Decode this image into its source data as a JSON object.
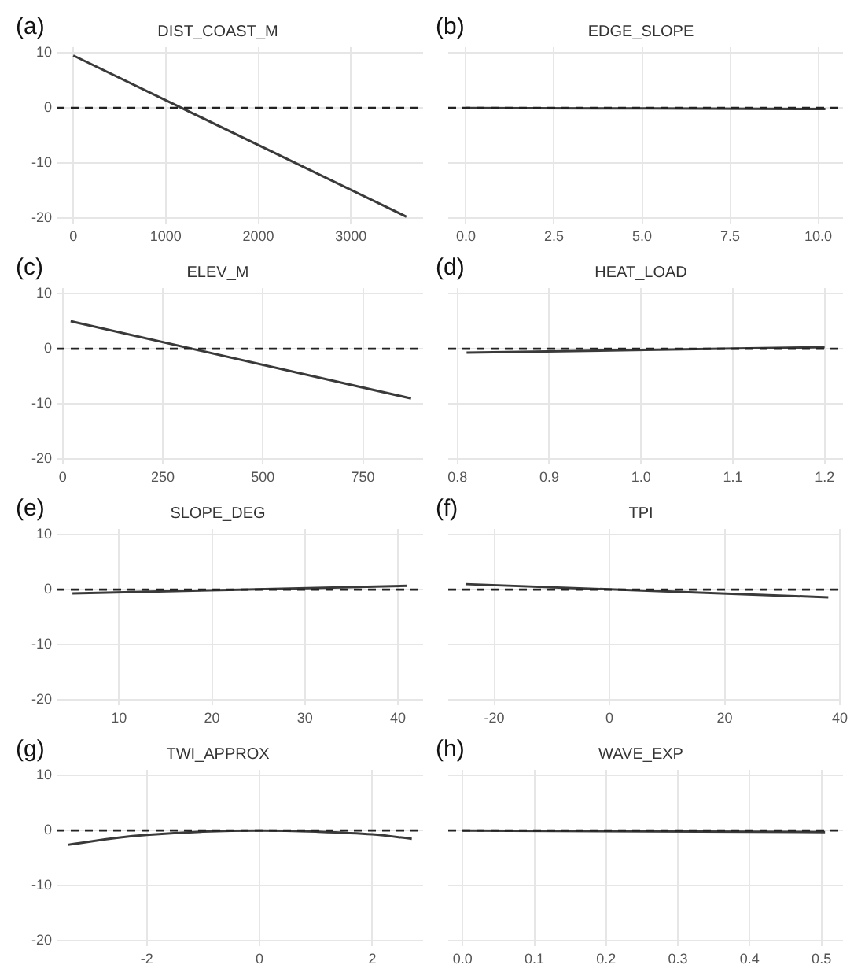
{
  "chart_data": [
    {
      "type": "line",
      "title": "DIST_COAST_M",
      "annotations": [
        "(a)"
      ],
      "x": [
        0,
        3600
      ],
      "series": [
        {
          "color": "#3a3a3a",
          "values": [
            9.5,
            -19.7
          ]
        }
      ],
      "xlim": [
        -180,
        3780
      ],
      "xticks": [
        0,
        1000,
        2000,
        3000
      ],
      "ylim": [
        -21,
        11
      ],
      "yticks": [
        -20,
        -10,
        0,
        10
      ],
      "grid": true,
      "marker": "none",
      "ref_lines": [
        {
          "axis": "y",
          "value": 0,
          "color": "#222222",
          "line_style": "dashed"
        }
      ]
    },
    {
      "type": "line",
      "title": "EDGE_SLOPE",
      "annotations": [
        "(b)"
      ],
      "x": [
        0,
        10.2
      ],
      "series": [
        {
          "color": "#3a3a3a",
          "values": [
            0,
            -0.2
          ]
        }
      ],
      "xlim": [
        -0.5,
        10.7
      ],
      "xticks": [
        {
          "value": 0,
          "label": "0.0"
        },
        2.5,
        {
          "value": 5,
          "label": "5.0"
        },
        7.5,
        {
          "value": 10,
          "label": "10.0"
        }
      ],
      "ylim": [
        -21,
        11
      ],
      "yticks": [
        -20,
        -10,
        0,
        10
      ],
      "tick_labels": "x",
      "grid": true,
      "marker": "none",
      "ref_lines": [
        {
          "axis": "y",
          "value": 0,
          "color": "#222222",
          "line_style": "dashed"
        }
      ]
    },
    {
      "type": "line",
      "title": "ELEV_M",
      "annotations": [
        "(c)"
      ],
      "x": [
        20,
        870
      ],
      "series": [
        {
          "color": "#3a3a3a",
          "values": [
            5,
            -9
          ]
        }
      ],
      "xlim": [
        -15,
        900
      ],
      "xticks": [
        0,
        250,
        500,
        750
      ],
      "ylim": [
        -21,
        11
      ],
      "yticks": [
        -20,
        -10,
        0,
        10
      ],
      "grid": true,
      "marker": "none",
      "ref_lines": [
        {
          "axis": "y",
          "value": 0,
          "color": "#222222",
          "line_style": "dashed"
        }
      ]
    },
    {
      "type": "line",
      "title": "HEAT_LOAD",
      "annotations": [
        "(d)"
      ],
      "x": [
        0.81,
        1.2
      ],
      "series": [
        {
          "color": "#3a3a3a",
          "values": [
            -0.7,
            0.3
          ]
        }
      ],
      "xlim": [
        0.79,
        1.22
      ],
      "xticks": [
        0.8,
        0.9,
        {
          "value": 1,
          "label": "1.0"
        },
        1.1,
        1.2
      ],
      "ylim": [
        -21,
        11
      ],
      "yticks": [
        -20,
        -10,
        0,
        10
      ],
      "tick_labels": "x",
      "grid": true,
      "marker": "none",
      "ref_lines": [
        {
          "axis": "y",
          "value": 0,
          "color": "#222222",
          "line_style": "dashed"
        }
      ]
    },
    {
      "type": "line",
      "title": "SLOPE_DEG",
      "annotations": [
        "(e)"
      ],
      "x": [
        5,
        41
      ],
      "series": [
        {
          "color": "#3a3a3a",
          "values": [
            -0.7,
            0.7
          ]
        }
      ],
      "xlim": [
        3.3,
        42.7
      ],
      "xticks": [
        10,
        20,
        30,
        40
      ],
      "ylim": [
        -21,
        11
      ],
      "yticks": [
        -20,
        -10,
        0,
        10
      ],
      "grid": true,
      "marker": "none",
      "ref_lines": [
        {
          "axis": "y",
          "value": 0,
          "color": "#222222",
          "line_style": "dashed"
        }
      ]
    },
    {
      "type": "line",
      "title": "TPI",
      "annotations": [
        "(f)"
      ],
      "x": [
        -25,
        38
      ],
      "series": [
        {
          "color": "#3a3a3a",
          "values": [
            1,
            -1.4
          ]
        }
      ],
      "xlim": [
        -28,
        40
      ],
      "xticks": [
        -20,
        0,
        20,
        40
      ],
      "ylim": [
        -21,
        11
      ],
      "yticks": [
        -20,
        -10,
        0,
        10
      ],
      "tick_labels": "x",
      "grid": true,
      "marker": "none",
      "ref_lines": [
        {
          "axis": "y",
          "value": 0,
          "color": "#222222",
          "line_style": "dashed"
        }
      ]
    },
    {
      "type": "line",
      "title": "TWI_APPROX",
      "annotations": [
        "(g)"
      ],
      "x": [
        -3.4,
        -2.5,
        -2,
        -1,
        0,
        1,
        2,
        2.7
      ],
      "series": [
        {
          "color": "#3a3a3a",
          "values": [
            -2.6,
            -1.3,
            -0.8,
            -0.2,
            0,
            -0.2,
            -0.7,
            -1.5
          ]
        }
      ],
      "xlim": [
        -3.6,
        2.9
      ],
      "xticks": [
        -2,
        0,
        2
      ],
      "ylim": [
        -21,
        11
      ],
      "yticks": [
        -20,
        -10,
        0,
        10
      ],
      "grid": true,
      "marker": "none",
      "ref_lines": [
        {
          "axis": "y",
          "value": 0,
          "color": "#222222",
          "line_style": "dashed"
        }
      ]
    },
    {
      "type": "line",
      "title": "WAVE_EXP",
      "annotations": [
        "(h)"
      ],
      "x": [
        0,
        0.505
      ],
      "series": [
        {
          "color": "#3a3a3a",
          "values": [
            0,
            -0.3
          ]
        }
      ],
      "xlim": [
        -0.02,
        0.53
      ],
      "xticks": [
        {
          "value": 0,
          "label": "0.0"
        },
        0.1,
        0.2,
        0.3,
        0.4,
        0.5
      ],
      "ylim": [
        -21,
        11
      ],
      "yticks": [
        -20,
        -10,
        0,
        10
      ],
      "tick_labels": "x",
      "grid": true,
      "marker": "none",
      "ref_lines": [
        {
          "axis": "y",
          "value": 0,
          "color": "#222222",
          "line_style": "dashed"
        }
      ]
    }
  ]
}
